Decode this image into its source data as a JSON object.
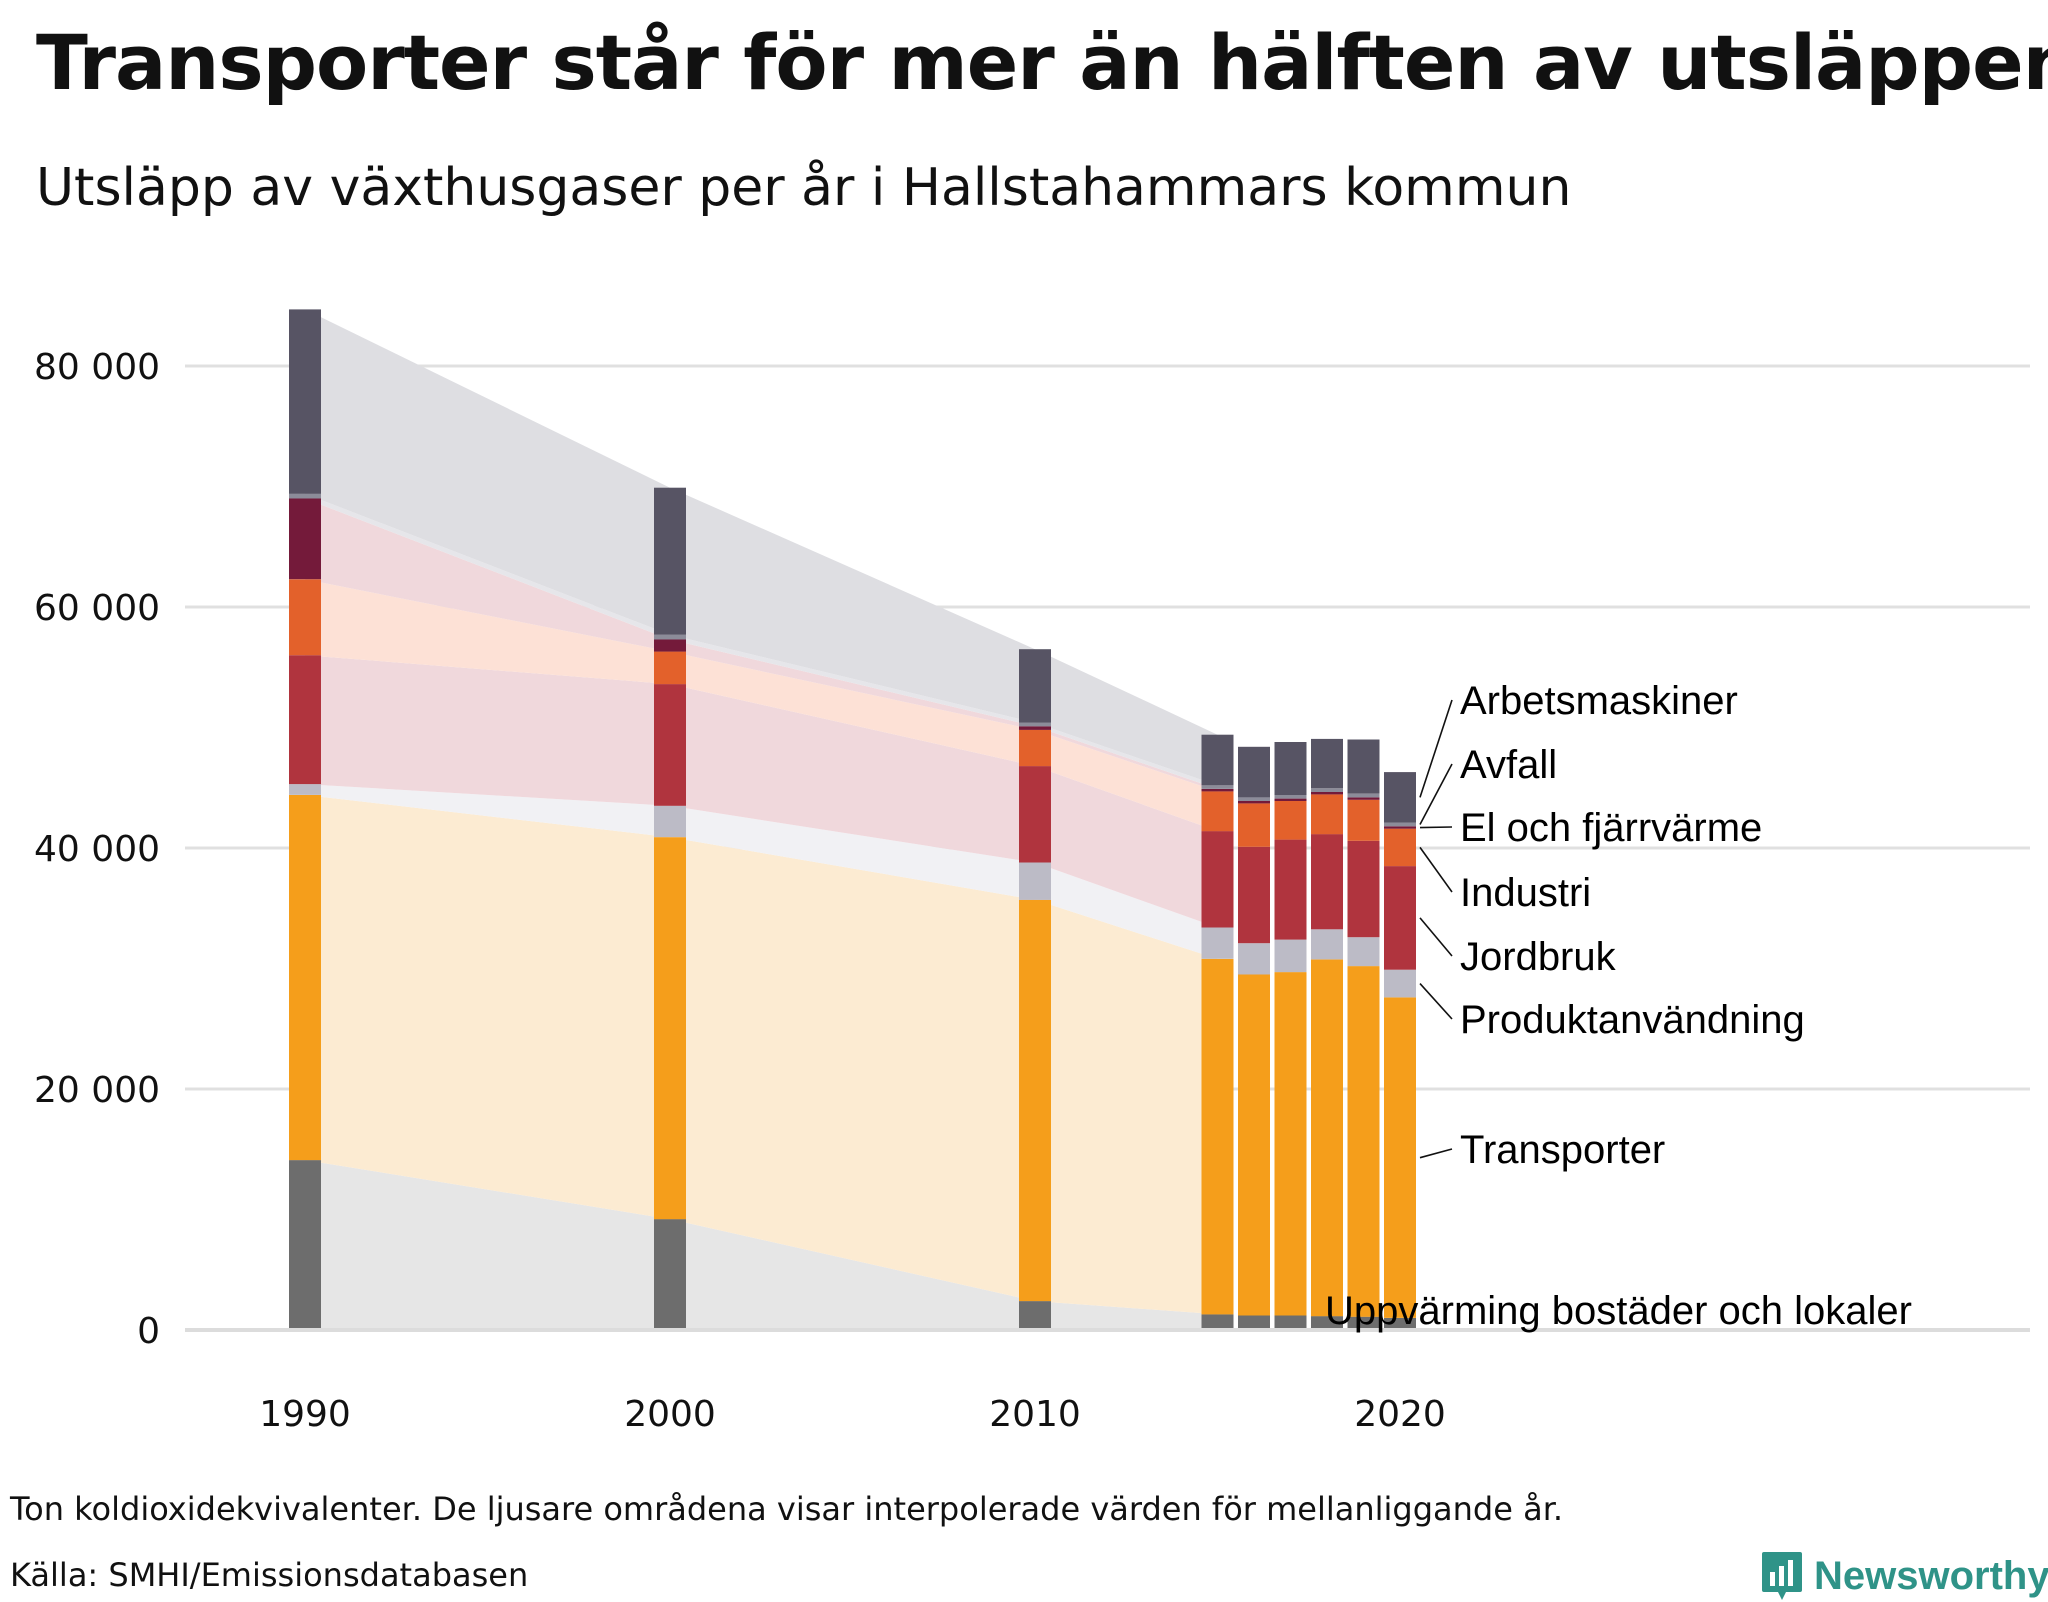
{
  "header": {
    "title": "Transporter står för mer än hälften av utsläppen",
    "subtitle": "Utsläpp av växthusgaser per år i Hallstahammars kommun"
  },
  "footer": {
    "note": "Ton koldioxidekvivalenter. De ljusare områdena visar interpolerade värden för mellanliggande år.",
    "source": "Källa: SMHI/Emissionsdatabasen",
    "brand": "Newsworthy"
  },
  "chart_data": {
    "type": "bar",
    "stacked": true,
    "title": "Transporter står för mer än hälften av utsläppen",
    "subtitle": "Utsläpp av växthusgaser per år i Hallstahammars kommun",
    "xlabel": "",
    "ylabel": "Ton koldioxidekvivalenter",
    "ylim": [
      0,
      85000
    ],
    "y_ticks": [
      0,
      20000,
      40000,
      60000,
      80000
    ],
    "y_tick_labels": [
      "0",
      "20 000",
      "40 000",
      "60 000",
      "80 000"
    ],
    "x_tick_values": [
      1990,
      2000,
      2010,
      2020
    ],
    "x_tick_labels": [
      "1990",
      "2000",
      "2010",
      "2020"
    ],
    "years": [
      1990,
      2000,
      2010,
      2015,
      2016,
      2017,
      2018,
      2019,
      2020
    ],
    "grid": true,
    "legend": "direct labels at right",
    "series": [
      {
        "name": "Uppvärming bostäder och lokaler",
        "color": "#6d6d6d",
        "band": "#e6e6e6",
        "values": [
          14100,
          9200,
          2400,
          1300,
          1200,
          1200,
          1150,
          1100,
          1000
        ]
      },
      {
        "name": "Transporter",
        "color": "#f59e1b",
        "band": "#fcebd2",
        "values": [
          30300,
          31700,
          33300,
          29500,
          28300,
          28500,
          29600,
          29100,
          26600
        ]
      },
      {
        "name": "Produktanvändning",
        "color": "#bcbbc6",
        "band": "#f1f1f4",
        "values": [
          900,
          2600,
          3100,
          2600,
          2600,
          2700,
          2500,
          2400,
          2300
        ]
      },
      {
        "name": "Jordbruk",
        "color": "#b0343e",
        "band": "#f0d8dc",
        "values": [
          10700,
          10100,
          8000,
          8000,
          8000,
          8300,
          7900,
          8000,
          8600
        ]
      },
      {
        "name": "Industri",
        "color": "#e3612b",
        "band": "#fde1d6",
        "values": [
          6300,
          2700,
          3000,
          3300,
          3600,
          3200,
          3300,
          3400,
          3100
        ]
      },
      {
        "name": "El och fjärrvärme",
        "color": "#741a3a",
        "band": "#f0d8dc",
        "values": [
          6700,
          1000,
          300,
          200,
          200,
          200,
          200,
          200,
          200
        ]
      },
      {
        "name": "Avfall",
        "color": "#8c8c99",
        "band": "#e6e6ea",
        "values": [
          400,
          400,
          300,
          300,
          300,
          300,
          300,
          300,
          300
        ]
      },
      {
        "name": "Arbetsmaskiner",
        "color": "#575464",
        "band": "#dedee2",
        "values": [
          15300,
          12200,
          6100,
          4200,
          4200,
          4400,
          4100,
          4500,
          4200
        ]
      }
    ]
  }
}
